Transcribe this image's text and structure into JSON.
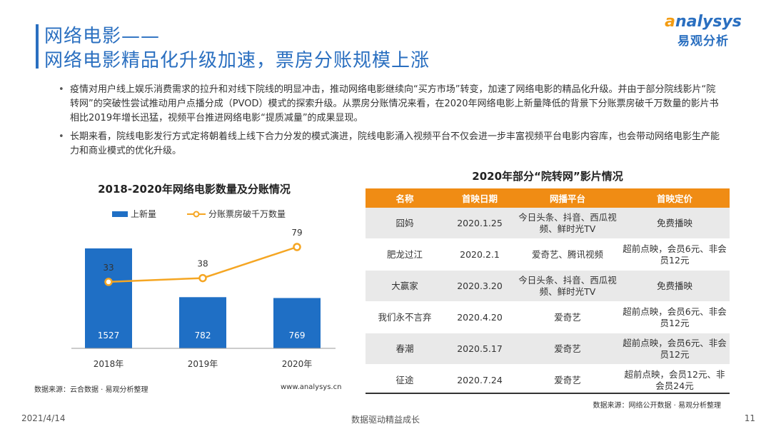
{
  "header": {
    "title_line1": "网络电影——",
    "title_line2": "网络电影精品化升级加速，票房分账规模上涨"
  },
  "logo": {
    "en": "nalysys",
    "cn": "易观分析"
  },
  "bullets": [
    "疫情对用户线上娱乐消费需求的拉升和对线下院线的明显冲击，推动网络电影继续向“买方市场”转变，加速了网络电影的精品化升级。并由于部分院线影片“院转网”的突破性尝试推动用户点播分成（PVOD）模式的探索升级。从票房分账情况来看，在2020年网络电影上新量降低的背景下分账票房破千万数量的影片书相比2019年增长迅猛，视频平台推进网络电影“提质减量”的成果显现。",
    "长期来看，院线电影发行方式定将朝着线上线下合力分发的模式演进，院线电影涌入视频平台不仅会进一步丰富视频平台电影内容库，也会带动网络电影生产能力和商业模式的优化升级。"
  ],
  "chart_data": {
    "type": "bar",
    "title": "2018-2020年网络电影数量及分账情况",
    "categories": [
      "2018年",
      "2019年",
      "2020年"
    ],
    "series": [
      {
        "name": "上新量",
        "type": "bar",
        "values": [
          1527,
          782,
          769
        ],
        "color": "#1f6fc5"
      },
      {
        "name": "分账票房破千万数量",
        "type": "line",
        "values": [
          33,
          38,
          79
        ],
        "color": "#f5a623"
      }
    ],
    "legend_position": "top",
    "grid": false
  },
  "chart_source": "数据来源：云合数据 · 易观分析整理",
  "chart_website": "www.analysys.cn",
  "table": {
    "title": "2020年部分“院转网”影片情况",
    "headers": [
      "名称",
      "首映日期",
      "网播平台",
      "首映定价"
    ],
    "rows": [
      [
        "囧妈",
        "2020.1.25",
        "今日头条、抖音、西瓜视频、鲜时光TV",
        "免费播映"
      ],
      [
        "肥龙过江",
        "2020.2.1",
        "爱奇艺、腾讯视频",
        "超前点映，会员6元、非会员12元"
      ],
      [
        "大赢家",
        "2020.3.20",
        "今日头条、抖音、西瓜视频、鲜时光TV",
        "免费播映"
      ],
      [
        "我们永不言弃",
        "2020.4.20",
        "爱奇艺",
        "超前点映，会员6元、非会员12元"
      ],
      [
        "春潮",
        "2020.5.17",
        "爱奇艺",
        "超前点映，会员6元、非会员12元"
      ],
      [
        "征途",
        "2020.7.24",
        "爱奇艺",
        "超前点映，会员12元、非会员24元"
      ]
    ],
    "source": "数据来源：网络公开数据 · 易观分析整理"
  },
  "footer": {
    "date": "2021/4/14",
    "slogan": "数据驱动精益成长",
    "page": "11"
  },
  "colors": {
    "brand_blue": "#2a6fc0",
    "header_orange": "#f08c14"
  }
}
